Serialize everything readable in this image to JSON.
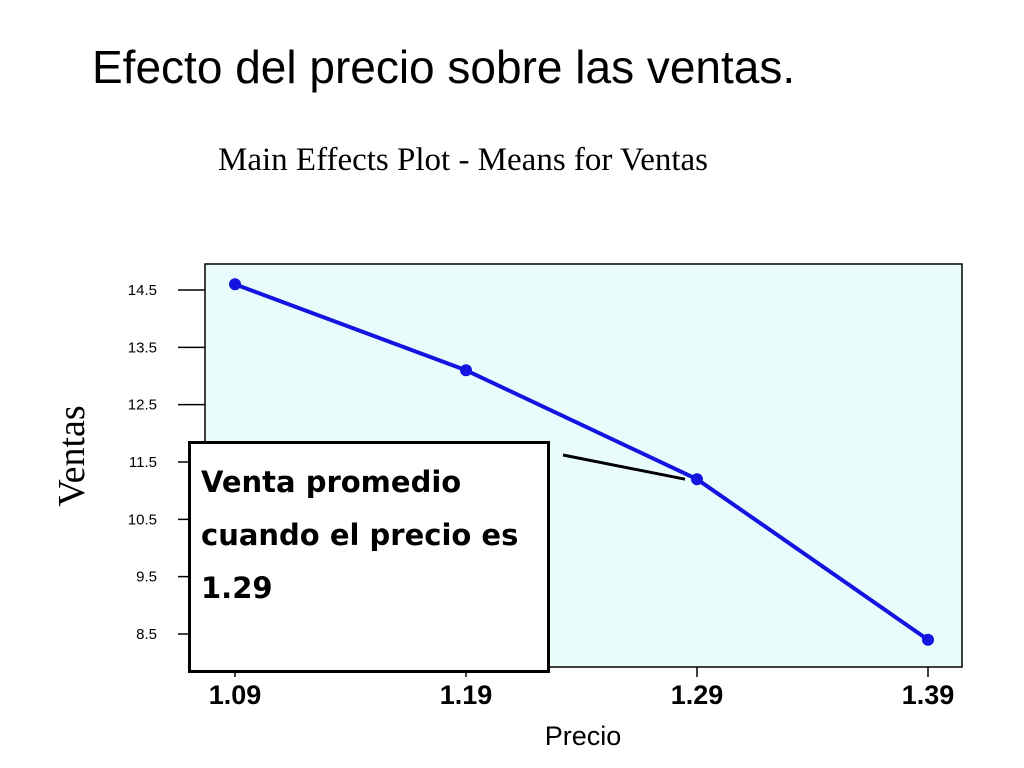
{
  "slide": {
    "title": "Efecto del precio sobre las ventas."
  },
  "callout": {
    "text": "Venta promedio cuando el precio es 1.29"
  },
  "colors": {
    "plot_background": "#e9fcfc",
    "series_line": "#1414e0",
    "callout_border": "#000000"
  },
  "chart_data": {
    "type": "line",
    "title": "Main Effects Plot - Means for Ventas",
    "xlabel": "Precio",
    "ylabel": "Ventas",
    "x": [
      "1.09",
      "1.19",
      "1.29",
      "1.39"
    ],
    "series": [
      {
        "values": [
          14.6,
          13.1,
          11.2,
          8.4
        ]
      }
    ],
    "yticks": [
      "14.5",
      "13.5",
      "12.5",
      "11.5",
      "10.5",
      "9.5",
      "8.5"
    ],
    "ylim": [
      8.0,
      15.0
    ],
    "grid": false,
    "annotation": {
      "target_x": "1.29"
    }
  }
}
